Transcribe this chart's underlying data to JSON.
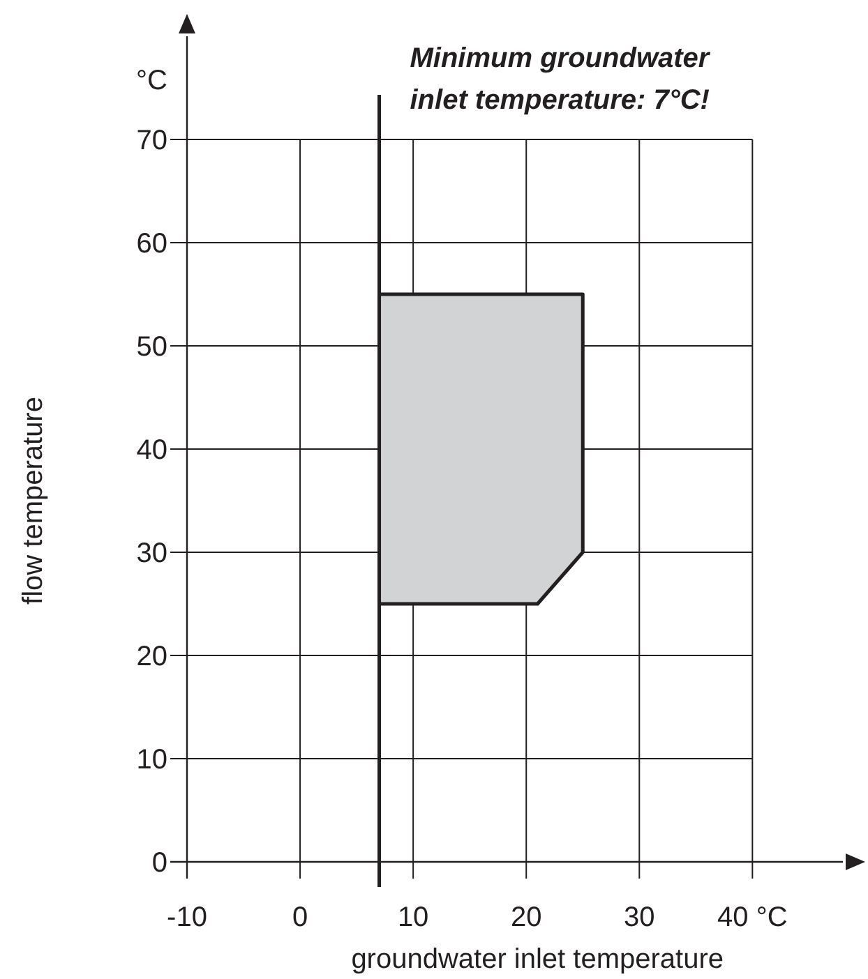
{
  "chart_data": {
    "type": "area",
    "xlabel": "groundwater inlet temperature",
    "ylabel": "flow temperature",
    "annotations": [
      "°C"
    ],
    "xlim": [
      -10,
      48
    ],
    "ylim": [
      0,
      80
    ],
    "xticks": [
      -10,
      0,
      10,
      20,
      30,
      {
        "value": 40,
        "label": "40 °C"
      }
    ],
    "yticks": [
      0,
      10,
      20,
      30,
      40,
      50,
      60,
      70
    ],
    "grid": true,
    "ref_lines": [
      {
        "axis": "x",
        "value": 7,
        "label": "Minimum groundwater inlet temperature: 7°C!",
        "color": "#231f20"
      }
    ],
    "series": [
      {
        "color": "#d1d3d4",
        "x": [
          7,
          7,
          25,
          25,
          21,
          7
        ],
        "values": [
          25,
          55,
          55,
          30,
          25,
          25
        ]
      }
    ]
  }
}
